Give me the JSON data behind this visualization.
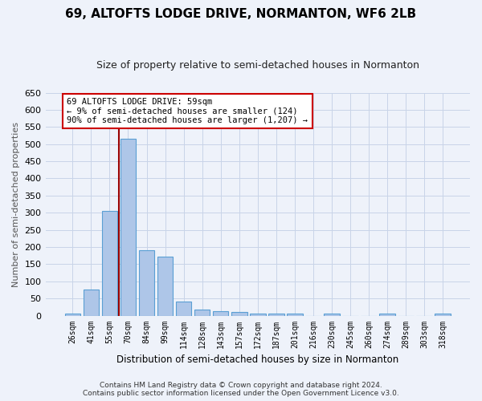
{
  "title": "69, ALTOFTS LODGE DRIVE, NORMANTON, WF6 2LB",
  "subtitle": "Size of property relative to semi-detached houses in Normanton",
  "xlabel": "Distribution of semi-detached houses by size in Normanton",
  "ylabel": "Number of semi-detached properties",
  "categories": [
    "26sqm",
    "41sqm",
    "55sqm",
    "70sqm",
    "84sqm",
    "99sqm",
    "114sqm",
    "128sqm",
    "143sqm",
    "157sqm",
    "172sqm",
    "187sqm",
    "201sqm",
    "216sqm",
    "230sqm",
    "245sqm",
    "260sqm",
    "274sqm",
    "289sqm",
    "303sqm",
    "318sqm"
  ],
  "values": [
    5,
    75,
    305,
    515,
    190,
    173,
    42,
    18,
    13,
    10,
    6,
    5,
    7,
    0,
    5,
    0,
    0,
    5,
    0,
    0,
    5
  ],
  "bar_color": "#aec6e8",
  "bar_edge_color": "#5a9fd4",
  "highlight_x": "55sqm",
  "highlight_line_color": "#990000",
  "annotation_text": "69 ALTOFTS LODGE DRIVE: 59sqm\n← 9% of semi-detached houses are smaller (124)\n90% of semi-detached houses are larger (1,207) →",
  "annotation_box_color": "#ffffff",
  "annotation_box_edge_color": "#cc0000",
  "ylim": [
    0,
    650
  ],
  "yticks": [
    0,
    50,
    100,
    150,
    200,
    250,
    300,
    350,
    400,
    450,
    500,
    550,
    600,
    650
  ],
  "grid_color": "#c8d4e8",
  "background_color": "#eef2fa",
  "footer_line1": "Contains HM Land Registry data © Crown copyright and database right 2024.",
  "footer_line2": "Contains public sector information licensed under the Open Government Licence v3.0."
}
